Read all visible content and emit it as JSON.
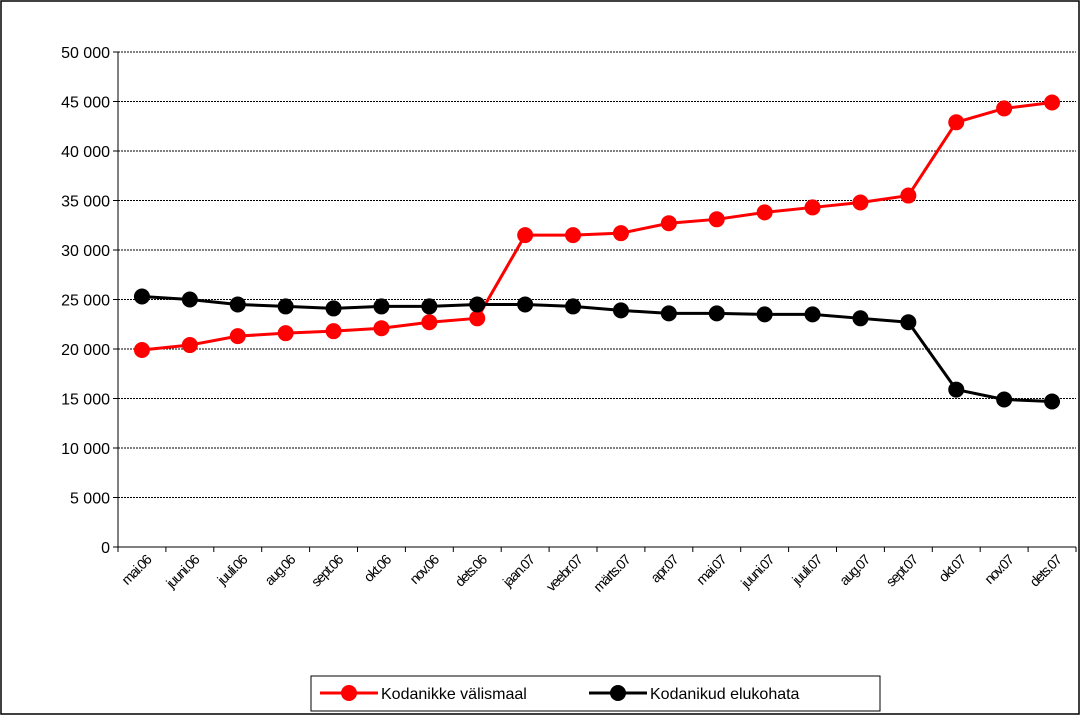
{
  "chart_data": {
    "type": "line",
    "title": "",
    "xlabel": "",
    "ylabel": "",
    "categories": [
      "mai.06",
      "juuni.06",
      "juuli.06",
      "aug.06",
      "sept.06",
      "okt.06",
      "nov.06",
      "dets.06",
      "jaan.07",
      "veebr.07",
      "märts.07",
      "apr.07",
      "mai.07",
      "juuni.07",
      "juuli.07",
      "aug.07",
      "sept.07",
      "okt.07",
      "nov.07",
      "dets.07"
    ],
    "ylim": [
      0,
      50000
    ],
    "yticks": [
      0,
      5000,
      10000,
      15000,
      20000,
      25000,
      30000,
      35000,
      40000,
      45000,
      50000
    ],
    "ytick_labels": [
      "0",
      "5 000",
      "10 000",
      "15 000",
      "20 000",
      "25 000",
      "30 000",
      "35 000",
      "40 000",
      "45 000",
      "50 000"
    ],
    "grid": true,
    "legend_position": "bottom",
    "series": [
      {
        "name": "Kodanikke välismaal",
        "color": "#ff0000",
        "values": [
          19900,
          20400,
          21300,
          21600,
          21800,
          22100,
          22700,
          23100,
          31500,
          31500,
          31700,
          32700,
          33100,
          33800,
          34300,
          34800,
          35500,
          42900,
          44300,
          44900
        ]
      },
      {
        "name": "Kodanikud elukohata",
        "color": "#000000",
        "values": [
          25300,
          25000,
          24500,
          24300,
          24100,
          24300,
          24300,
          24500,
          24500,
          24300,
          23900,
          23600,
          23600,
          23500,
          23500,
          23100,
          22700,
          15900,
          14900,
          14700
        ]
      }
    ]
  }
}
